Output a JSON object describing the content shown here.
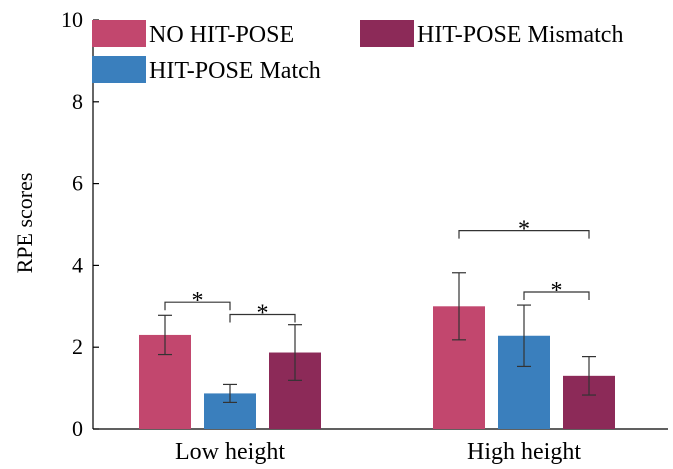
{
  "chart_data": {
    "type": "bar",
    "ylabel": "RPE scores",
    "xlabel": "",
    "ylim": [
      0,
      10
    ],
    "yticks": [
      0,
      2,
      4,
      6,
      8,
      10
    ],
    "grid": false,
    "legend_position": "top",
    "categories": [
      "Low height",
      "High height"
    ],
    "series": [
      {
        "name": "NO HIT-POSE",
        "color": "#c2476e",
        "values": [
          2.3,
          3.0
        ],
        "errors": [
          0.48,
          0.82
        ]
      },
      {
        "name": "HIT-POSE Match",
        "color": "#3a7fbd",
        "values": [
          0.87,
          2.28
        ],
        "errors": [
          0.22,
          0.75
        ]
      },
      {
        "name": "HIT-POSE Mismatch",
        "color": "#8c2a58",
        "values": [
          1.87,
          1.3
        ],
        "errors": [
          0.68,
          0.47
        ]
      }
    ],
    "significance": [
      {
        "category": 0,
        "from_series": 0,
        "to_series": 1,
        "level": 3.1,
        "label": "*"
      },
      {
        "category": 0,
        "from_series": 1,
        "to_series": 2,
        "level": 2.8,
        "label": "*"
      },
      {
        "category": 1,
        "from_series": 0,
        "to_series": 2,
        "level": 4.85,
        "label": "*"
      },
      {
        "category": 1,
        "from_series": 1,
        "to_series": 2,
        "level": 3.35,
        "label": "*"
      }
    ]
  }
}
